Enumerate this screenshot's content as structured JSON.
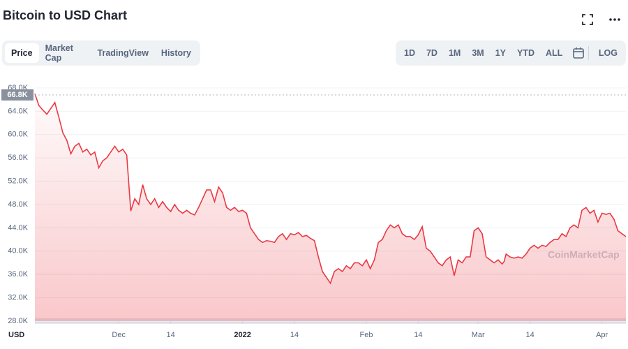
{
  "header": {
    "title": "Bitcoin to USD Chart"
  },
  "tabs": [
    "Price",
    "Market Cap",
    "TradingView",
    "History"
  ],
  "ranges": [
    "1D",
    "7D",
    "1M",
    "3M",
    "1Y",
    "YTD",
    "ALL"
  ],
  "log_button": "LOG",
  "chart_data": {
    "type": "line",
    "color": "#ea3943",
    "grid": true,
    "y_unit": "USD",
    "watermark": "CoinMarketCap",
    "current_price": {
      "value": 66800,
      "label": "66.8K"
    },
    "xlim": [
      0,
      148
    ],
    "ylim": [
      28000,
      68000
    ],
    "xticks": [
      {
        "value": 21,
        "label": "Dec"
      },
      {
        "value": 34,
        "label": "14"
      },
      {
        "value": 52,
        "label": "2022"
      },
      {
        "value": 65,
        "label": "14"
      },
      {
        "value": 83,
        "label": "Feb"
      },
      {
        "value": 96,
        "label": "14"
      },
      {
        "value": 111,
        "label": "Mar"
      },
      {
        "value": 124,
        "label": "14"
      },
      {
        "value": 142,
        "label": "Apr"
      }
    ],
    "yticks": [
      {
        "value": 28000,
        "label": "28.0K"
      },
      {
        "value": 32000,
        "label": "32.0K"
      },
      {
        "value": 36000,
        "label": "36.0K"
      },
      {
        "value": 40000,
        "label": "40.0K"
      },
      {
        "value": 44000,
        "label": "44.0K"
      },
      {
        "value": 48000,
        "label": "48.0K"
      },
      {
        "value": 52000,
        "label": "52.0K"
      },
      {
        "value": 56000,
        "label": "56.0K"
      },
      {
        "value": 60000,
        "label": "60.0K"
      },
      {
        "value": 64000,
        "label": "64.0K"
      },
      {
        "value": 68000,
        "label": "68.0K"
      }
    ],
    "x": [
      0,
      1,
      2,
      3,
      4,
      5,
      6,
      7,
      8,
      9,
      10,
      11,
      12,
      13,
      14,
      15,
      16,
      17,
      18,
      19,
      20,
      21,
      22,
      23,
      24,
      25,
      26,
      27,
      28,
      29,
      30,
      31,
      32,
      33,
      34,
      35,
      36,
      37,
      38,
      39,
      40,
      41,
      42,
      43,
      44,
      45,
      46,
      47,
      48,
      49,
      50,
      51,
      52,
      53,
      54,
      55,
      56,
      57,
      58,
      59,
      60,
      61,
      62,
      63,
      64,
      65,
      66,
      67,
      68,
      69,
      70,
      71,
      72,
      73,
      74,
      75,
      76,
      77,
      78,
      79,
      80,
      81,
      82,
      83,
      84,
      85,
      86,
      87,
      88,
      89,
      90,
      91,
      92,
      93,
      94,
      95,
      96,
      97,
      98,
      99,
      100,
      101,
      102,
      103,
      104,
      105,
      106,
      107,
      108,
      109,
      110,
      111,
      112,
      113,
      114,
      115,
      116,
      117,
      117.5,
      118,
      119,
      120,
      121,
      122,
      123,
      124,
      125,
      126,
      127,
      128,
      129,
      130,
      131,
      132,
      133,
      134,
      135,
      136,
      137,
      138,
      139,
      140,
      141,
      142,
      143,
      144,
      145,
      146,
      147,
      148
    ],
    "values": [
      67000,
      65000,
      64200,
      63500,
      64500,
      65500,
      63000,
      60300,
      59000,
      56700,
      58000,
      58500,
      57000,
      57500,
      56500,
      57000,
      54300,
      55500,
      56000,
      57000,
      58000,
      57000,
      57500,
      56500,
      46900,
      49000,
      48000,
      51400,
      49000,
      48000,
      49000,
      47500,
      48500,
      47500,
      46800,
      48000,
      47000,
      46500,
      47000,
      46500,
      46200,
      47500,
      49000,
      50500,
      50500,
      48500,
      51000,
      50000,
      47500,
      47000,
      47500,
      46800,
      47000,
      46500,
      44000,
      43000,
      42000,
      41500,
      41800,
      41700,
      41500,
      42500,
      43000,
      42000,
      43000,
      42800,
      43200,
      42500,
      42700,
      42200,
      41800,
      39000,
      36500,
      35500,
      34500,
      36500,
      37000,
      36500,
      37500,
      37000,
      38000,
      38000,
      37500,
      38500,
      37000,
      38500,
      41500,
      42000,
      43500,
      44500,
      44000,
      44500,
      43000,
      42500,
      42500,
      42000,
      42800,
      44200,
      40500,
      40000,
      39000,
      38000,
      37500,
      38500,
      39000,
      35800,
      38500,
      38000,
      39000,
      39000,
      43500,
      44000,
      43000,
      39000,
      38500,
      38000,
      38500,
      37800,
      38200,
      39500,
      39000,
      38800,
      39000,
      38800,
      39500,
      40500,
      41000,
      40500,
      41000,
      40800,
      41500,
      42000,
      42000,
      43000,
      42500,
      44000,
      44500,
      44000,
      47000,
      47500,
      46500,
      47000,
      45000,
      46500,
      46300,
      46500,
      45500,
      43500,
      43000,
      42500
    ]
  }
}
